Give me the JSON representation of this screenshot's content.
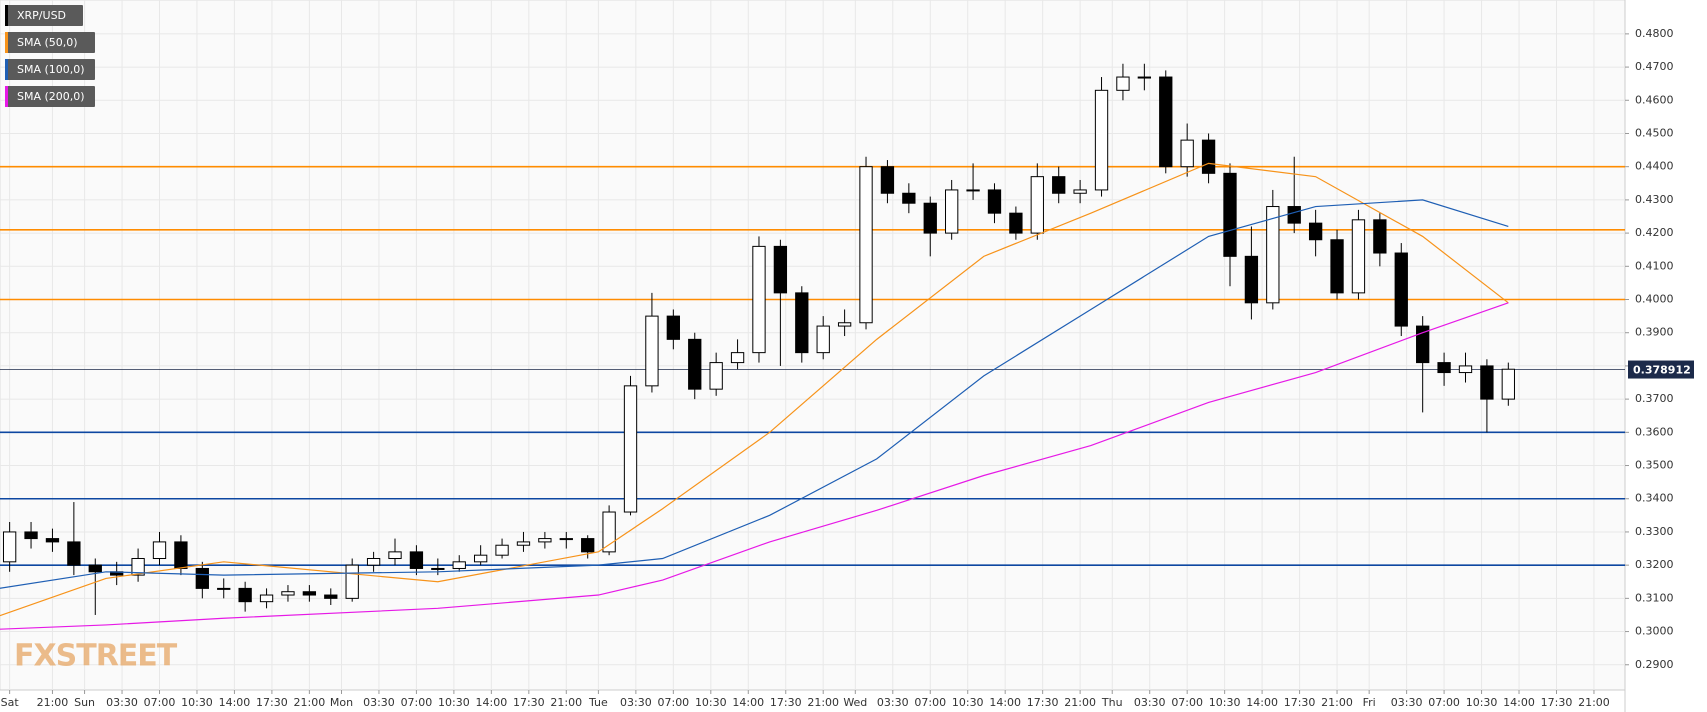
{
  "chart_data": {
    "type": "candlestick",
    "logo": "FXSTREET",
    "xlim": [
      -7.9,
      143.9
    ],
    "ylim": [
      0.2824,
      0.4902
    ],
    "grid": true,
    "legend": "top-left",
    "up_color": "#ffffff",
    "down_color": "#000000",
    "yticks": [
      {
        "value": 0.29,
        "label": "0.2900"
      },
      {
        "value": 0.3,
        "label": "0.3000"
      },
      {
        "value": 0.31,
        "label": "0.3100"
      },
      {
        "value": 0.32,
        "label": "0.3200"
      },
      {
        "value": 0.33,
        "label": "0.3300"
      },
      {
        "value": 0.34,
        "label": "0.3400"
      },
      {
        "value": 0.35,
        "label": "0.3500"
      },
      {
        "value": 0.36,
        "label": "0.3600"
      },
      {
        "value": 0.37,
        "label": "0.3700"
      },
      {
        "value": 0.38,
        "label": "0.3800"
      },
      {
        "value": 0.39,
        "label": "0.3900"
      },
      {
        "value": 0.4,
        "label": "0.4000"
      },
      {
        "value": 0.41,
        "label": "0.4100"
      },
      {
        "value": 0.42,
        "label": "0.4200"
      },
      {
        "value": 0.43,
        "label": "0.4300"
      },
      {
        "value": 0.44,
        "label": "0.4400"
      },
      {
        "value": 0.45,
        "label": "0.4500"
      },
      {
        "value": 0.46,
        "label": "0.4600"
      },
      {
        "value": 0.47,
        "label": "0.4700"
      },
      {
        "value": 0.48,
        "label": "0.4800"
      }
    ],
    "xticks": [
      {
        "value": -7,
        "label": "Sat"
      },
      {
        "value": -3,
        "label": "21:00"
      },
      {
        "value": 0,
        "label": "Sun"
      },
      {
        "value": 3.5,
        "label": "03:30"
      },
      {
        "value": 7,
        "label": "07:00"
      },
      {
        "value": 10.5,
        "label": "10:30"
      },
      {
        "value": 14,
        "label": "14:00"
      },
      {
        "value": 17.5,
        "label": "17:30"
      },
      {
        "value": 21,
        "label": "21:00"
      },
      {
        "value": 24,
        "label": "Mon"
      },
      {
        "value": 27.5,
        "label": "03:30"
      },
      {
        "value": 31,
        "label": "07:00"
      },
      {
        "value": 34.5,
        "label": "10:30"
      },
      {
        "value": 38,
        "label": "14:00"
      },
      {
        "value": 41.5,
        "label": "17:30"
      },
      {
        "value": 45,
        "label": "21:00"
      },
      {
        "value": 48,
        "label": "Tue"
      },
      {
        "value": 51.5,
        "label": "03:30"
      },
      {
        "value": 55,
        "label": "07:00"
      },
      {
        "value": 58.5,
        "label": "10:30"
      },
      {
        "value": 62,
        "label": "14:00"
      },
      {
        "value": 65.5,
        "label": "17:30"
      },
      {
        "value": 69,
        "label": "21:00"
      },
      {
        "value": 72,
        "label": "Wed"
      },
      {
        "value": 75.5,
        "label": "03:30"
      },
      {
        "value": 79,
        "label": "07:00"
      },
      {
        "value": 82.5,
        "label": "10:30"
      },
      {
        "value": 86,
        "label": "14:00"
      },
      {
        "value": 89.5,
        "label": "17:30"
      },
      {
        "value": 93,
        "label": "21:00"
      },
      {
        "value": 96,
        "label": "Thu"
      },
      {
        "value": 99.5,
        "label": "03:30"
      },
      {
        "value": 103,
        "label": "07:00"
      },
      {
        "value": 106.5,
        "label": "10:30"
      },
      {
        "value": 110,
        "label": "14:00"
      },
      {
        "value": 113.5,
        "label": "17:30"
      },
      {
        "value": 117,
        "label": "21:00"
      },
      {
        "value": 120,
        "label": "Fri"
      },
      {
        "value": 123.5,
        "label": "03:30"
      },
      {
        "value": 127,
        "label": "07:00"
      },
      {
        "value": 130.5,
        "label": "10:30"
      },
      {
        "value": 134,
        "label": "14:00"
      },
      {
        "value": 137.5,
        "label": "17:30"
      },
      {
        "value": 141,
        "label": "21:00"
      }
    ],
    "levels": [
      {
        "value": 0.44,
        "color": "#ff8c00"
      },
      {
        "value": 0.421,
        "color": "#ff8c00"
      },
      {
        "value": 0.4,
        "color": "#ff8c00"
      },
      {
        "value": 0.36,
        "color": "#0d47a1"
      },
      {
        "value": 0.34,
        "color": "#0d47a1"
      },
      {
        "value": 0.32,
        "color": "#0d47a1"
      }
    ],
    "last_price": 0.378912,
    "last_price_color": "#1c2a4a",
    "series": [
      {
        "name": "XRP/USD",
        "color": "#000000",
        "x": [
          -7,
          -5,
          -3,
          -1,
          1,
          3,
          5,
          7,
          9,
          11,
          13,
          15,
          17,
          19,
          21,
          23,
          25,
          27,
          29,
          31,
          33,
          35,
          37,
          39,
          41,
          43,
          45,
          47,
          49,
          51,
          53,
          55,
          57,
          59,
          61,
          63,
          65,
          67,
          69,
          71,
          73,
          75,
          77,
          79,
          81,
          83,
          85,
          87,
          89,
          91,
          93,
          95,
          97,
          99,
          101,
          103,
          105,
          107,
          109,
          111,
          113,
          115,
          117,
          119,
          121,
          123,
          125,
          127,
          129,
          131,
          133
        ],
        "open": [
          0.321,
          0.33,
          0.328,
          0.327,
          0.32,
          0.318,
          0.317,
          0.322,
          0.327,
          0.319,
          0.313,
          0.313,
          0.309,
          0.311,
          0.312,
          0.311,
          0.31,
          0.32,
          0.322,
          0.324,
          0.319,
          0.319,
          0.321,
          0.323,
          0.326,
          0.327,
          0.328,
          0.328,
          0.324,
          0.336,
          0.374,
          0.395,
          0.388,
          0.373,
          0.381,
          0.384,
          0.416,
          0.402,
          0.384,
          0.392,
          0.393,
          0.44,
          0.432,
          0.429,
          0.42,
          0.433,
          0.433,
          0.426,
          0.42,
          0.437,
          0.432,
          0.433,
          0.463,
          0.467,
          0.467,
          0.44,
          0.448,
          0.438,
          0.413,
          0.399,
          0.428,
          0.423,
          0.418,
          0.402,
          0.424,
          0.414,
          0.392,
          0.381,
          0.378,
          0.38,
          0.37
        ],
        "high": [
          0.333,
          0.333,
          0.331,
          0.339,
          0.322,
          0.321,
          0.325,
          0.33,
          0.329,
          0.321,
          0.316,
          0.315,
          0.313,
          0.314,
          0.314,
          0.313,
          0.322,
          0.324,
          0.328,
          0.326,
          0.322,
          0.323,
          0.326,
          0.328,
          0.33,
          0.33,
          0.33,
          0.329,
          0.338,
          0.377,
          0.402,
          0.397,
          0.39,
          0.384,
          0.388,
          0.419,
          0.418,
          0.404,
          0.395,
          0.397,
          0.443,
          0.442,
          0.435,
          0.431,
          0.436,
          0.441,
          0.435,
          0.428,
          0.441,
          0.44,
          0.436,
          0.467,
          0.471,
          0.471,
          0.469,
          0.453,
          0.45,
          0.441,
          0.422,
          0.433,
          0.443,
          0.427,
          0.421,
          0.427,
          0.426,
          0.417,
          0.395,
          0.384,
          0.384,
          0.382,
          0.381
        ],
        "low": [
          0.318,
          0.325,
          0.324,
          0.317,
          0.305,
          0.314,
          0.315,
          0.32,
          0.317,
          0.31,
          0.31,
          0.306,
          0.307,
          0.309,
          0.309,
          0.308,
          0.309,
          0.318,
          0.32,
          0.317,
          0.317,
          0.318,
          0.32,
          0.322,
          0.324,
          0.325,
          0.325,
          0.322,
          0.323,
          0.335,
          0.372,
          0.385,
          0.37,
          0.371,
          0.379,
          0.381,
          0.38,
          0.381,
          0.382,
          0.389,
          0.391,
          0.429,
          0.426,
          0.413,
          0.418,
          0.43,
          0.423,
          0.418,
          0.418,
          0.429,
          0.429,
          0.431,
          0.46,
          0.463,
          0.438,
          0.437,
          0.435,
          0.404,
          0.394,
          0.397,
          0.42,
          0.413,
          0.4,
          0.4,
          0.41,
          0.389,
          0.366,
          0.374,
          0.375,
          0.36,
          0.368
        ],
        "close": [
          0.33,
          0.328,
          0.327,
          0.32,
          0.318,
          0.317,
          0.322,
          0.327,
          0.319,
          0.313,
          0.313,
          0.309,
          0.311,
          0.312,
          0.311,
          0.31,
          0.32,
          0.322,
          0.324,
          0.319,
          0.319,
          0.321,
          0.323,
          0.326,
          0.327,
          0.328,
          0.328,
          0.324,
          0.336,
          0.374,
          0.395,
          0.388,
          0.373,
          0.381,
          0.384,
          0.416,
          0.402,
          0.384,
          0.392,
          0.393,
          0.44,
          0.432,
          0.429,
          0.42,
          0.433,
          0.433,
          0.426,
          0.42,
          0.437,
          0.432,
          0.433,
          0.463,
          0.467,
          0.467,
          0.44,
          0.448,
          0.438,
          0.413,
          0.399,
          0.428,
          0.423,
          0.418,
          0.402,
          0.424,
          0.414,
          0.392,
          0.381,
          0.378,
          0.38,
          0.37,
          0.379
        ]
      },
      {
        "name": "SMA (50,0)",
        "color": "#f7931a",
        "x": [
          -8,
          2,
          13,
          33,
          48,
          54,
          64,
          74,
          84,
          94,
          105,
          115,
          125,
          133
        ],
        "values": [
          0.3047,
          0.316,
          0.321,
          0.315,
          0.324,
          0.337,
          0.36,
          0.388,
          0.413,
          0.426,
          0.441,
          0.437,
          0.419,
          0.399
        ]
      },
      {
        "name": "SMA (100,0)",
        "color": "#1f5fb4",
        "x": [
          -8,
          2,
          13,
          33,
          48,
          54,
          64,
          74,
          84,
          94,
          105,
          115,
          125,
          133
        ],
        "values": [
          0.313,
          0.318,
          0.317,
          0.318,
          0.32,
          0.322,
          0.335,
          0.352,
          0.377,
          0.397,
          0.419,
          0.428,
          0.43,
          0.422
        ]
      },
      {
        "name": "SMA (200,0)",
        "color": "#e619e6",
        "x": [
          -8,
          2,
          13,
          33,
          48,
          54,
          64,
          74,
          84,
          94,
          105,
          115,
          125,
          133
        ],
        "values": [
          0.3007,
          0.302,
          0.304,
          0.307,
          0.311,
          0.3155,
          0.327,
          0.3365,
          0.347,
          0.356,
          0.369,
          0.378,
          0.39,
          0.399
        ]
      }
    ]
  }
}
